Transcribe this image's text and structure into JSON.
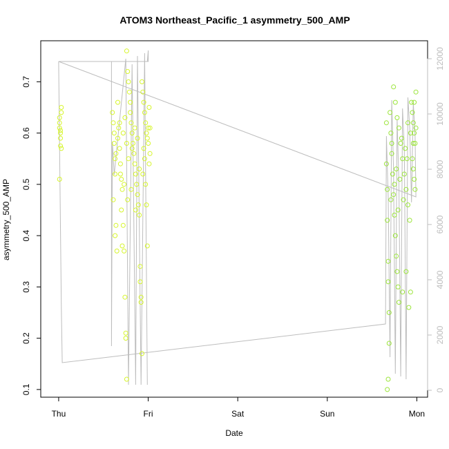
{
  "chart_data": {
    "type": "scatter",
    "title": "ATOM3 Northeast_Pacific_1 asymmetry_500_AMP",
    "xlabel": "Date",
    "ylabel": "asymmetry_500_AMP",
    "x_ticks": [
      "Thu",
      "Fri",
      "Sat",
      "Sun",
      "Mon"
    ],
    "x_tick_days": [
      0,
      1,
      2,
      3,
      4
    ],
    "xlim_days": [
      -0.2,
      4.12
    ],
    "y_ticks": [
      0.1,
      0.2,
      0.3,
      0.4,
      0.5,
      0.6,
      0.7
    ],
    "ylim": [
      0.085,
      0.78
    ],
    "y2_ticks": [
      0,
      2000,
      4000,
      6000,
      8000,
      10000,
      12000
    ],
    "y2lim": [
      -250,
      12650
    ],
    "grid": false,
    "colors": {
      "scatter_early": "#d6f52a",
      "scatter_late": "#9be53a",
      "secondary_line": "#bdbdbd",
      "right_axis": "#bdbdbd"
    },
    "series": [
      {
        "points_day_value": [
          [
            0.01,
            0.63
          ],
          [
            0.01,
            0.61
          ],
          [
            0.01,
            0.62
          ],
          [
            0.02,
            0.6
          ],
          [
            0.02,
            0.59
          ],
          [
            0.03,
            0.64
          ],
          [
            0.03,
            0.57
          ],
          [
            0.02,
            0.575
          ],
          [
            0.01,
            0.51
          ],
          [
            0.03,
            0.65
          ],
          [
            0.02,
            0.605
          ],
          [
            0.6,
            0.64
          ],
          [
            0.61,
            0.62
          ],
          [
            0.62,
            0.6
          ],
          [
            0.62,
            0.58
          ],
          [
            0.63,
            0.55
          ],
          [
            0.63,
            0.52
          ],
          [
            0.61,
            0.47
          ],
          [
            0.64,
            0.42
          ],
          [
            0.63,
            0.4
          ],
          [
            0.65,
            0.37
          ],
          [
            0.66,
            0.66
          ],
          [
            0.67,
            0.61
          ],
          [
            0.68,
            0.57
          ],
          [
            0.69,
            0.54
          ],
          [
            0.7,
            0.51
          ],
          [
            0.71,
            0.49
          ],
          [
            0.7,
            0.45
          ],
          [
            0.72,
            0.42
          ],
          [
            0.71,
            0.38
          ],
          [
            0.73,
            0.37
          ],
          [
            0.74,
            0.28
          ],
          [
            0.75,
            0.21
          ],
          [
            0.75,
            0.2
          ],
          [
            0.76,
            0.12
          ],
          [
            0.76,
            0.76
          ],
          [
            0.77,
            0.72
          ],
          [
            0.78,
            0.7
          ],
          [
            0.79,
            0.68
          ],
          [
            0.8,
            0.66
          ],
          [
            0.8,
            0.64
          ],
          [
            0.81,
            0.62
          ],
          [
            0.82,
            0.6
          ],
          [
            0.83,
            0.58
          ],
          [
            0.84,
            0.56
          ],
          [
            0.85,
            0.54
          ],
          [
            0.86,
            0.52
          ],
          [
            0.87,
            0.5
          ],
          [
            0.88,
            0.48
          ],
          [
            0.89,
            0.46
          ],
          [
            0.9,
            0.44
          ],
          [
            0.91,
            0.34
          ],
          [
            0.91,
            0.31
          ],
          [
            0.92,
            0.28
          ],
          [
            0.92,
            0.27
          ],
          [
            0.93,
            0.17
          ],
          [
            0.93,
            0.7
          ],
          [
            0.94,
            0.68
          ],
          [
            0.95,
            0.66
          ],
          [
            0.96,
            0.64
          ],
          [
            0.97,
            0.62
          ],
          [
            0.98,
            0.6
          ],
          [
            0.99,
            0.59
          ],
          [
            1.0,
            0.58
          ],
          [
            1.01,
            0.65
          ],
          [
            1.02,
            0.61
          ],
          [
            1.02,
            0.56
          ],
          [
            0.97,
            0.5
          ],
          [
            0.98,
            0.46
          ],
          [
            0.99,
            0.38
          ],
          [
            0.96,
            0.55
          ],
          [
            0.66,
            0.59
          ],
          [
            0.68,
            0.62
          ],
          [
            0.72,
            0.6
          ],
          [
            0.74,
            0.63
          ],
          [
            0.76,
            0.58
          ],
          [
            0.78,
            0.55
          ],
          [
            0.82,
            0.57
          ],
          [
            0.85,
            0.61
          ],
          [
            0.88,
            0.59
          ],
          [
            0.9,
            0.53
          ],
          [
            0.64,
            0.56
          ],
          [
            0.69,
            0.52
          ],
          [
            0.73,
            0.5
          ],
          [
            0.77,
            0.47
          ],
          [
            0.81,
            0.49
          ],
          [
            0.86,
            0.45
          ],
          [
            0.94,
            0.52
          ],
          [
            0.95,
            0.57
          ],
          [
            1.0,
            0.61
          ],
          [
            1.01,
            0.54
          ]
        ]
      },
      {
        "points_day_value": [
          [
            3.66,
            0.62
          ],
          [
            3.66,
            0.54
          ],
          [
            3.67,
            0.49
          ],
          [
            3.67,
            0.43
          ],
          [
            3.68,
            0.35
          ],
          [
            3.68,
            0.31
          ],
          [
            3.69,
            0.25
          ],
          [
            3.69,
            0.19
          ],
          [
            3.68,
            0.12
          ],
          [
            3.67,
            0.1
          ],
          [
            3.7,
            0.64
          ],
          [
            3.71,
            0.6
          ],
          [
            3.72,
            0.56
          ],
          [
            3.73,
            0.52
          ],
          [
            3.74,
            0.48
          ],
          [
            3.75,
            0.44
          ],
          [
            3.76,
            0.4
          ],
          [
            3.77,
            0.36
          ],
          [
            3.78,
            0.33
          ],
          [
            3.79,
            0.3
          ],
          [
            3.74,
            0.69
          ],
          [
            3.76,
            0.66
          ],
          [
            3.78,
            0.63
          ],
          [
            3.8,
            0.61
          ],
          [
            3.82,
            0.58
          ],
          [
            3.84,
            0.55
          ],
          [
            3.86,
            0.52
          ],
          [
            3.88,
            0.49
          ],
          [
            3.9,
            0.46
          ],
          [
            3.92,
            0.43
          ],
          [
            3.8,
            0.27
          ],
          [
            3.84,
            0.29
          ],
          [
            3.88,
            0.33
          ],
          [
            3.91,
            0.26
          ],
          [
            3.93,
            0.29
          ],
          [
            3.94,
            0.66
          ],
          [
            3.95,
            0.64
          ],
          [
            3.96,
            0.62
          ],
          [
            3.97,
            0.6
          ],
          [
            3.98,
            0.58
          ],
          [
            3.95,
            0.55
          ],
          [
            3.96,
            0.53
          ],
          [
            3.97,
            0.51
          ],
          [
            3.98,
            0.49
          ],
          [
            3.99,
            0.61
          ],
          [
            3.99,
            0.68
          ],
          [
            3.97,
            0.66
          ],
          [
            3.72,
            0.58
          ],
          [
            3.77,
            0.53
          ],
          [
            3.83,
            0.59
          ],
          [
            3.87,
            0.57
          ],
          [
            3.9,
            0.62
          ],
          [
            3.71,
            0.47
          ],
          [
            3.75,
            0.5
          ],
          [
            3.79,
            0.45
          ],
          [
            3.81,
            0.51
          ],
          [
            3.85,
            0.47
          ],
          [
            3.89,
            0.55
          ],
          [
            3.93,
            0.6
          ],
          [
            3.96,
            0.58
          ]
        ]
      }
    ],
    "secondary_line_day_value": [
      [
        0.0,
        11900
      ],
      [
        0.0,
        11850
      ],
      [
        0.03,
        3000
      ],
      [
        0.04,
        1000
      ],
      [
        3.65,
        2400
      ],
      [
        3.66,
        9200
      ],
      [
        3.68,
        7000
      ],
      [
        3.7,
        1200
      ],
      [
        3.72,
        10500
      ],
      [
        3.74,
        8000
      ],
      [
        3.76,
        600
      ],
      [
        3.78,
        9800
      ],
      [
        3.8,
        7500
      ],
      [
        3.82,
        500
      ],
      [
        3.84,
        10200
      ],
      [
        3.86,
        8800
      ],
      [
        3.88,
        400
      ],
      [
        3.9,
        10600
      ],
      [
        3.92,
        9500
      ],
      [
        3.94,
        6800
      ],
      [
        3.96,
        10400
      ],
      [
        3.98,
        9200
      ],
      [
        3.99,
        7000
      ],
      [
        0.0,
        11900
      ],
      [
        0.99,
        11900
      ],
      [
        1.0,
        12300
      ],
      [
        1.0,
        11900
      ],
      [
        0.59,
        11900
      ],
      [
        0.59,
        1600
      ],
      [
        0.6,
        9000
      ],
      [
        0.62,
        7800
      ],
      [
        0.75,
        12000
      ],
      [
        0.78,
        200
      ],
      [
        0.82,
        11800
      ],
      [
        0.86,
        200
      ],
      [
        0.88,
        12100
      ],
      [
        0.92,
        200
      ],
      [
        0.96,
        12200
      ],
      [
        0.99,
        200
      ]
    ]
  }
}
